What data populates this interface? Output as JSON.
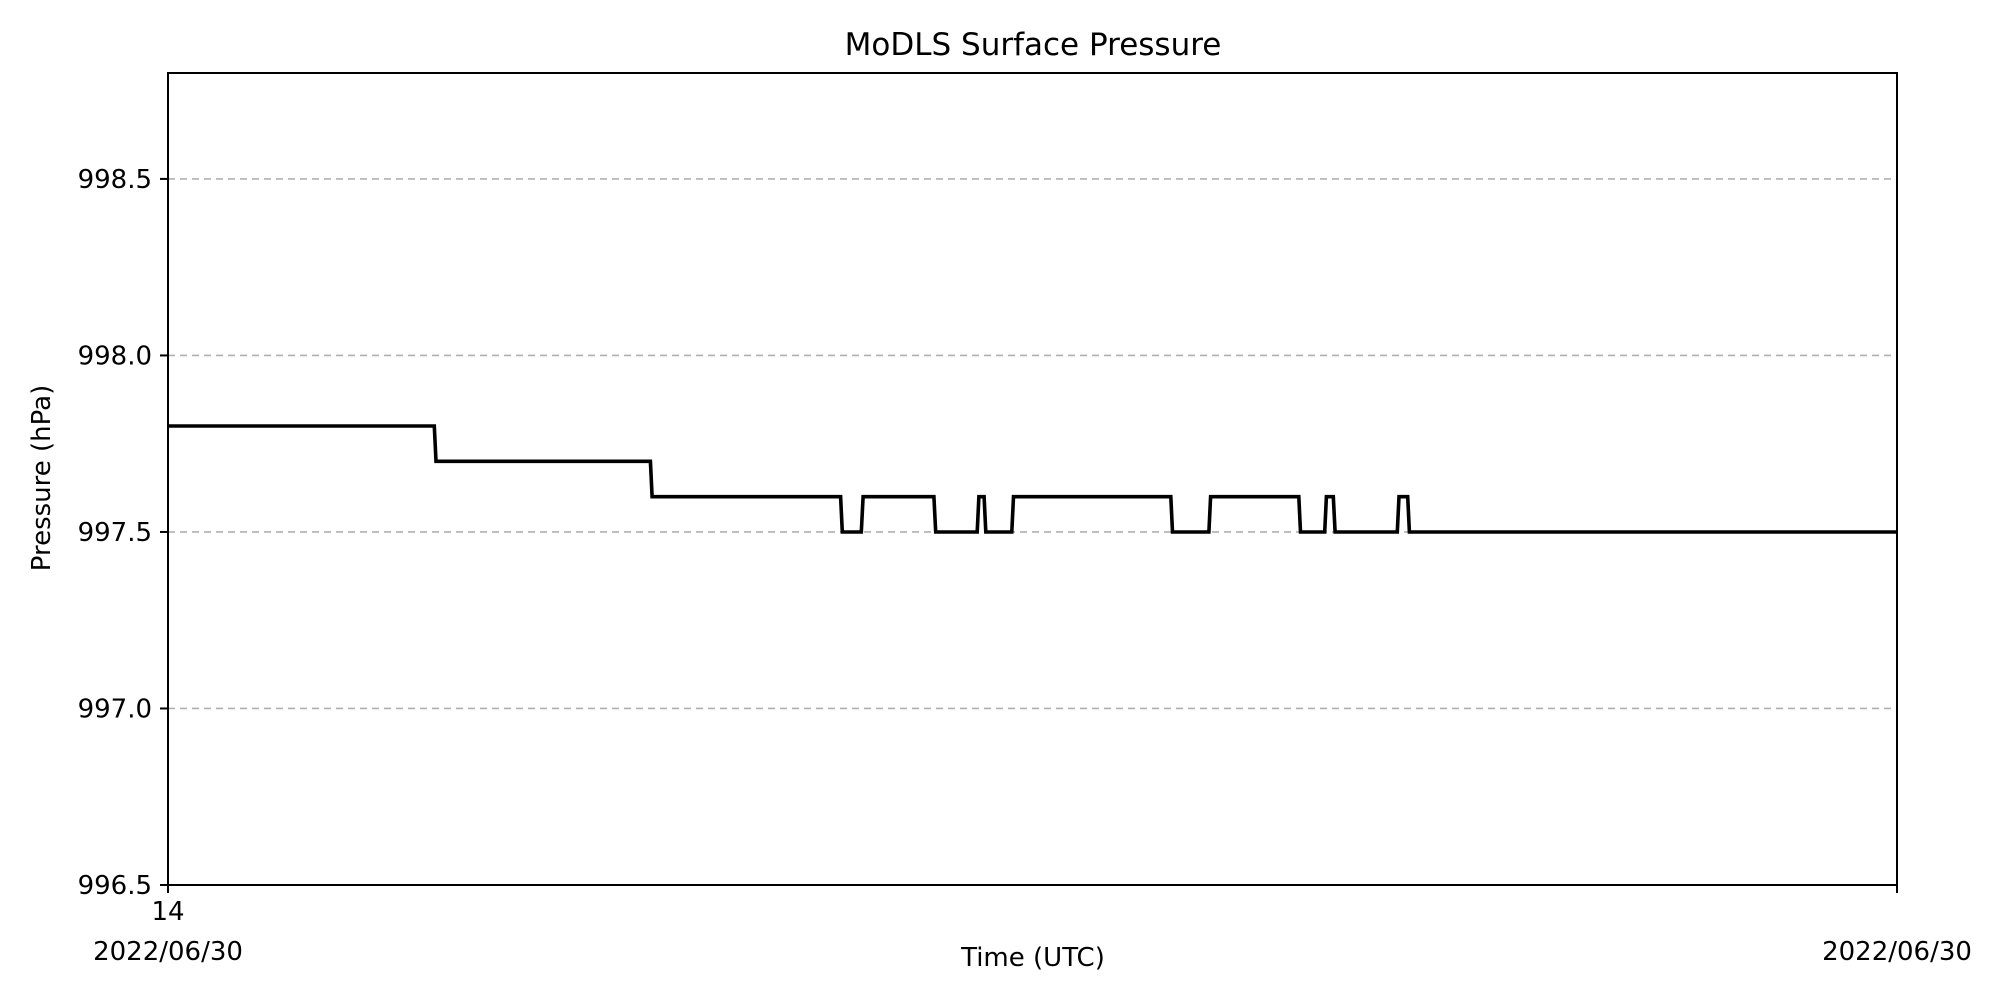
{
  "chart_data": {
    "type": "line",
    "title": "MoDLS Surface Pressure",
    "xlabel": "Time (UTC)",
    "ylabel": "Pressure (hPa)",
    "ylim": [
      996.5,
      998.8
    ],
    "yticks": [
      "996.5",
      "997.0",
      "997.5",
      "998.0",
      "998.5"
    ],
    "xtick_labels": [
      {
        "time": "14",
        "date": "2022/06/30"
      },
      {
        "time": "",
        "date": "2022/06/30"
      }
    ],
    "grid": "horizontal dashed",
    "line_color": "#000000",
    "grid_color": "#b0b0b0",
    "series": [
      {
        "x_fraction": [
          0.0,
          0.154,
          0.155,
          0.279,
          0.28,
          0.389,
          0.39,
          0.401,
          0.402,
          0.443,
          0.444,
          0.468,
          0.469,
          0.472,
          0.473,
          0.488,
          0.489,
          0.58,
          0.581,
          0.602,
          0.603,
          0.654,
          0.655,
          0.669,
          0.67,
          0.674,
          0.675,
          0.711,
          0.712,
          0.717,
          0.718,
          1.0
        ],
        "values": [
          997.8,
          997.8,
          997.7,
          997.7,
          997.6,
          997.6,
          997.5,
          997.5,
          997.6,
          997.6,
          997.5,
          997.5,
          997.6,
          997.6,
          997.5,
          997.5,
          997.6,
          997.6,
          997.5,
          997.5,
          997.6,
          997.6,
          997.5,
          997.5,
          997.6,
          997.6,
          997.5,
          997.5,
          997.6,
          997.6,
          997.5,
          997.5
        ]
      }
    ]
  }
}
